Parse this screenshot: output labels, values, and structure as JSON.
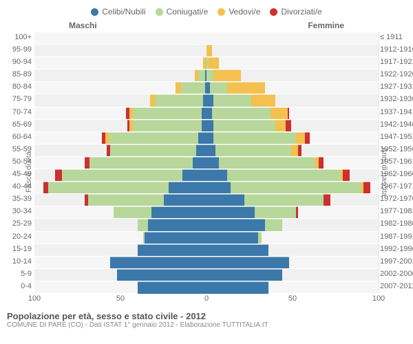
{
  "legend": [
    {
      "label": "Celibi/Nubili",
      "color": "#3c78aa"
    },
    {
      "label": "Coniugati/e",
      "color": "#b8d79a"
    },
    {
      "label": "Vedovi/e",
      "color": "#f4c04f"
    },
    {
      "label": "Divorziati/e",
      "color": "#cc3030"
    }
  ],
  "header": {
    "male": "Maschi",
    "female": "Femmine"
  },
  "y_left_title": "Fasce di età",
  "y_right_title": "Anni di nascita",
  "x_max": 100,
  "x_ticks": [
    100,
    50,
    0,
    50,
    100
  ],
  "footer_title": "Popolazione per età, sesso e stato civile - 2012",
  "footer_sub": "COMUNE DI PARÈ (CO) - Dati ISTAT 1° gennaio 2012 - Elaborazione TUTTITALIA.IT",
  "colors": {
    "single": "#3c78aa",
    "married": "#b8d79a",
    "widowed": "#f4c04f",
    "divorced": "#cc3030"
  },
  "rows": [
    {
      "age": "100+",
      "birth": "≤ 1911",
      "m": [
        0,
        0,
        0,
        0
      ],
      "f": [
        0,
        0,
        0,
        0
      ]
    },
    {
      "age": "95-99",
      "birth": "1912-1916",
      "m": [
        0,
        0,
        0,
        0
      ],
      "f": [
        0,
        0,
        3,
        0
      ]
    },
    {
      "age": "90-94",
      "birth": "1917-1921",
      "m": [
        0,
        0,
        2,
        0
      ],
      "f": [
        0,
        1,
        6,
        0
      ]
    },
    {
      "age": "85-89",
      "birth": "1922-1926",
      "m": [
        1,
        4,
        2,
        0
      ],
      "f": [
        0,
        4,
        16,
        0
      ]
    },
    {
      "age": "80-84",
      "birth": "1927-1931",
      "m": [
        1,
        14,
        3,
        0
      ],
      "f": [
        2,
        10,
        22,
        0
      ]
    },
    {
      "age": "75-79",
      "birth": "1932-1936",
      "m": [
        2,
        28,
        3,
        0
      ],
      "f": [
        4,
        22,
        14,
        0
      ]
    },
    {
      "age": "70-74",
      "birth": "1937-1941",
      "m": [
        3,
        40,
        2,
        2
      ],
      "f": [
        3,
        34,
        10,
        1
      ]
    },
    {
      "age": "65-69",
      "birth": "1942-1946",
      "m": [
        3,
        40,
        2,
        1
      ],
      "f": [
        4,
        36,
        6,
        3
      ]
    },
    {
      "age": "60-64",
      "birth": "1947-1951",
      "m": [
        5,
        52,
        2,
        2
      ],
      "f": [
        4,
        48,
        5,
        3
      ]
    },
    {
      "age": "55-59",
      "birth": "1952-1956",
      "m": [
        6,
        50,
        0,
        2
      ],
      "f": [
        5,
        44,
        4,
        2
      ]
    },
    {
      "age": "50-54",
      "birth": "1957-1961",
      "m": [
        8,
        60,
        0,
        3
      ],
      "f": [
        7,
        56,
        2,
        3
      ]
    },
    {
      "age": "45-49",
      "birth": "1962-1966",
      "m": [
        14,
        70,
        0,
        4
      ],
      "f": [
        12,
        66,
        1,
        4
      ]
    },
    {
      "age": "40-44",
      "birth": "1967-1971",
      "m": [
        22,
        70,
        0,
        3
      ],
      "f": [
        14,
        76,
        1,
        4
      ]
    },
    {
      "age": "35-39",
      "birth": "1972-1976",
      "m": [
        25,
        44,
        0,
        2
      ],
      "f": [
        22,
        46,
        0,
        4
      ]
    },
    {
      "age": "30-34",
      "birth": "1977-1981",
      "m": [
        32,
        22,
        0,
        0
      ],
      "f": [
        28,
        24,
        0,
        1
      ]
    },
    {
      "age": "25-29",
      "birth": "1982-1986",
      "m": [
        34,
        6,
        0,
        0
      ],
      "f": [
        34,
        10,
        0,
        0
      ]
    },
    {
      "age": "20-24",
      "birth": "1987-1991",
      "m": [
        36,
        1,
        0,
        0
      ],
      "f": [
        30,
        2,
        0,
        0
      ]
    },
    {
      "age": "15-19",
      "birth": "1992-1996",
      "m": [
        40,
        0,
        0,
        0
      ],
      "f": [
        36,
        0,
        0,
        0
      ]
    },
    {
      "age": "10-14",
      "birth": "1997-2001",
      "m": [
        56,
        0,
        0,
        0
      ],
      "f": [
        48,
        0,
        0,
        0
      ]
    },
    {
      "age": "5-9",
      "birth": "2002-2006",
      "m": [
        52,
        0,
        0,
        0
      ],
      "f": [
        44,
        0,
        0,
        0
      ]
    },
    {
      "age": "0-4",
      "birth": "2007-2011",
      "m": [
        40,
        0,
        0,
        0
      ],
      "f": [
        36,
        0,
        0,
        0
      ]
    }
  ]
}
